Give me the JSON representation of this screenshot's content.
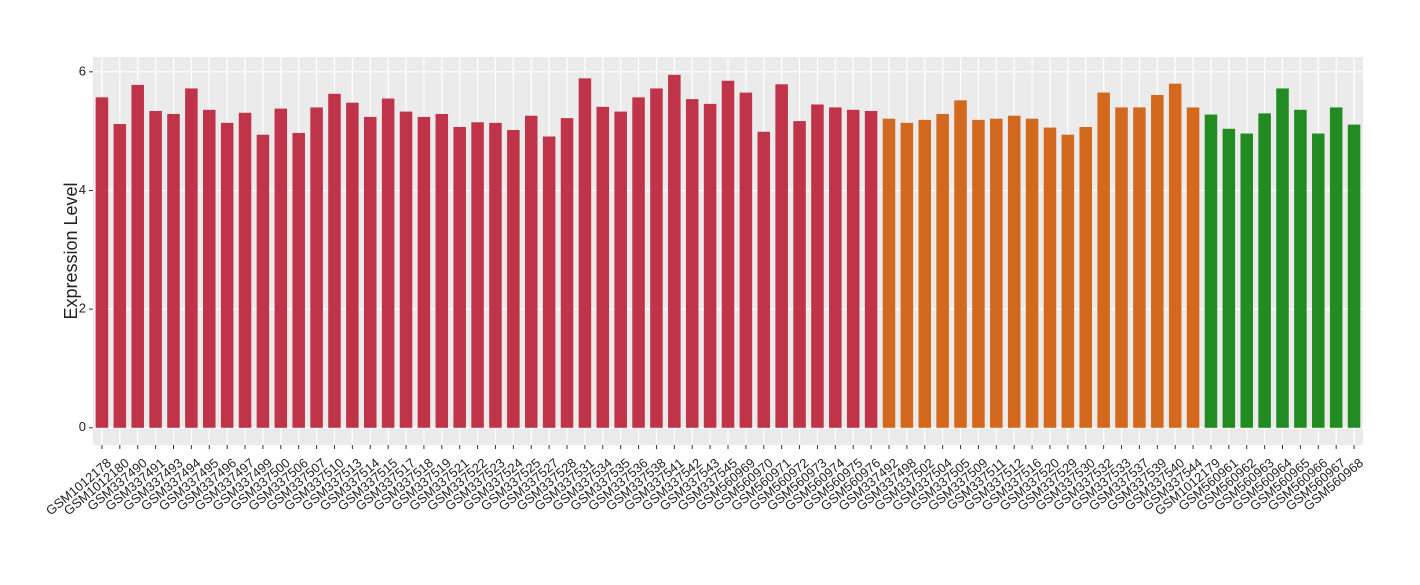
{
  "chart_data": {
    "type": "bar",
    "y_label": "Expression Level",
    "categories": [
      "GSM1012178",
      "GSM1012180",
      "GSM337490",
      "GSM337491",
      "GSM337493",
      "GSM337494",
      "GSM337495",
      "GSM337496",
      "GSM337497",
      "GSM337499",
      "GSM337500",
      "GSM337506",
      "GSM337507",
      "GSM337510",
      "GSM337513",
      "GSM337514",
      "GSM337515",
      "GSM337517",
      "GSM337518",
      "GSM337519",
      "GSM337521",
      "GSM337522",
      "GSM337523",
      "GSM337524",
      "GSM337525",
      "GSM337527",
      "GSM337528",
      "GSM337531",
      "GSM337534",
      "GSM337535",
      "GSM337536",
      "GSM337538",
      "GSM337541",
      "GSM337542",
      "GSM337543",
      "GSM337545",
      "GSM560969",
      "GSM560970",
      "GSM560971",
      "GSM560972",
      "GSM560973",
      "GSM560974",
      "GSM560975",
      "GSM560976",
      "GSM337492",
      "GSM337498",
      "GSM337502",
      "GSM337504",
      "GSM337505",
      "GSM337509",
      "GSM337511",
      "GSM337512",
      "GSM337516",
      "GSM337520",
      "GSM337529",
      "GSM337530",
      "GSM337532",
      "GSM337533",
      "GSM337537",
      "GSM337539",
      "GSM337540",
      "GSM337544",
      "GSM1012179",
      "GSM560961",
      "GSM560962",
      "GSM560963",
      "GSM560964",
      "GSM560965",
      "GSM560966",
      "GSM560967",
      "GSM560968"
    ],
    "values": [
      5.57,
      5.12,
      5.78,
      5.34,
      5.29,
      5.72,
      5.36,
      5.14,
      5.31,
      4.94,
      5.38,
      4.97,
      5.4,
      5.63,
      5.48,
      5.24,
      5.55,
      5.33,
      5.24,
      5.29,
      5.07,
      5.15,
      5.14,
      5.02,
      5.26,
      4.91,
      5.22,
      5.89,
      5.41,
      5.33,
      5.57,
      5.72,
      5.95,
      5.54,
      5.46,
      5.85,
      5.65,
      4.99,
      5.79,
      5.17,
      5.45,
      5.4,
      5.36,
      5.34,
      5.21,
      5.14,
      5.19,
      5.29,
      5.52,
      5.19,
      5.21,
      5.26,
      5.21,
      5.06,
      4.94,
      5.07,
      5.65,
      5.4,
      5.4,
      5.61,
      5.8,
      5.4,
      5.28,
      5.04,
      4.96,
      5.3,
      5.72,
      5.36,
      4.96,
      5.4,
      5.11
    ],
    "colors": [
      "#c0344a",
      "#c0344a",
      "#c0344a",
      "#c0344a",
      "#c0344a",
      "#c0344a",
      "#c0344a",
      "#c0344a",
      "#c0344a",
      "#c0344a",
      "#c0344a",
      "#c0344a",
      "#c0344a",
      "#c0344a",
      "#c0344a",
      "#c0344a",
      "#c0344a",
      "#c0344a",
      "#c0344a",
      "#c0344a",
      "#c0344a",
      "#c0344a",
      "#c0344a",
      "#c0344a",
      "#c0344a",
      "#c0344a",
      "#c0344a",
      "#c0344a",
      "#c0344a",
      "#c0344a",
      "#c0344a",
      "#c0344a",
      "#c0344a",
      "#c0344a",
      "#c0344a",
      "#c0344a",
      "#c0344a",
      "#c0344a",
      "#c0344a",
      "#c0344a",
      "#c0344a",
      "#c0344a",
      "#c0344a",
      "#c0344a",
      "#d2691e",
      "#d2691e",
      "#d2691e",
      "#d2691e",
      "#d2691e",
      "#d2691e",
      "#d2691e",
      "#d2691e",
      "#d2691e",
      "#d2691e",
      "#d2691e",
      "#d2691e",
      "#d2691e",
      "#d2691e",
      "#d2691e",
      "#d2691e",
      "#d2691e",
      "#d2691e",
      "#228b22",
      "#228b22",
      "#228b22",
      "#228b22",
      "#228b22",
      "#228b22",
      "#228b22",
      "#228b22",
      "#228b22"
    ],
    "ylim": [
      -0.29,
      6.25
    ],
    "yticks": [
      0,
      2,
      4,
      6
    ],
    "grid": true
  }
}
